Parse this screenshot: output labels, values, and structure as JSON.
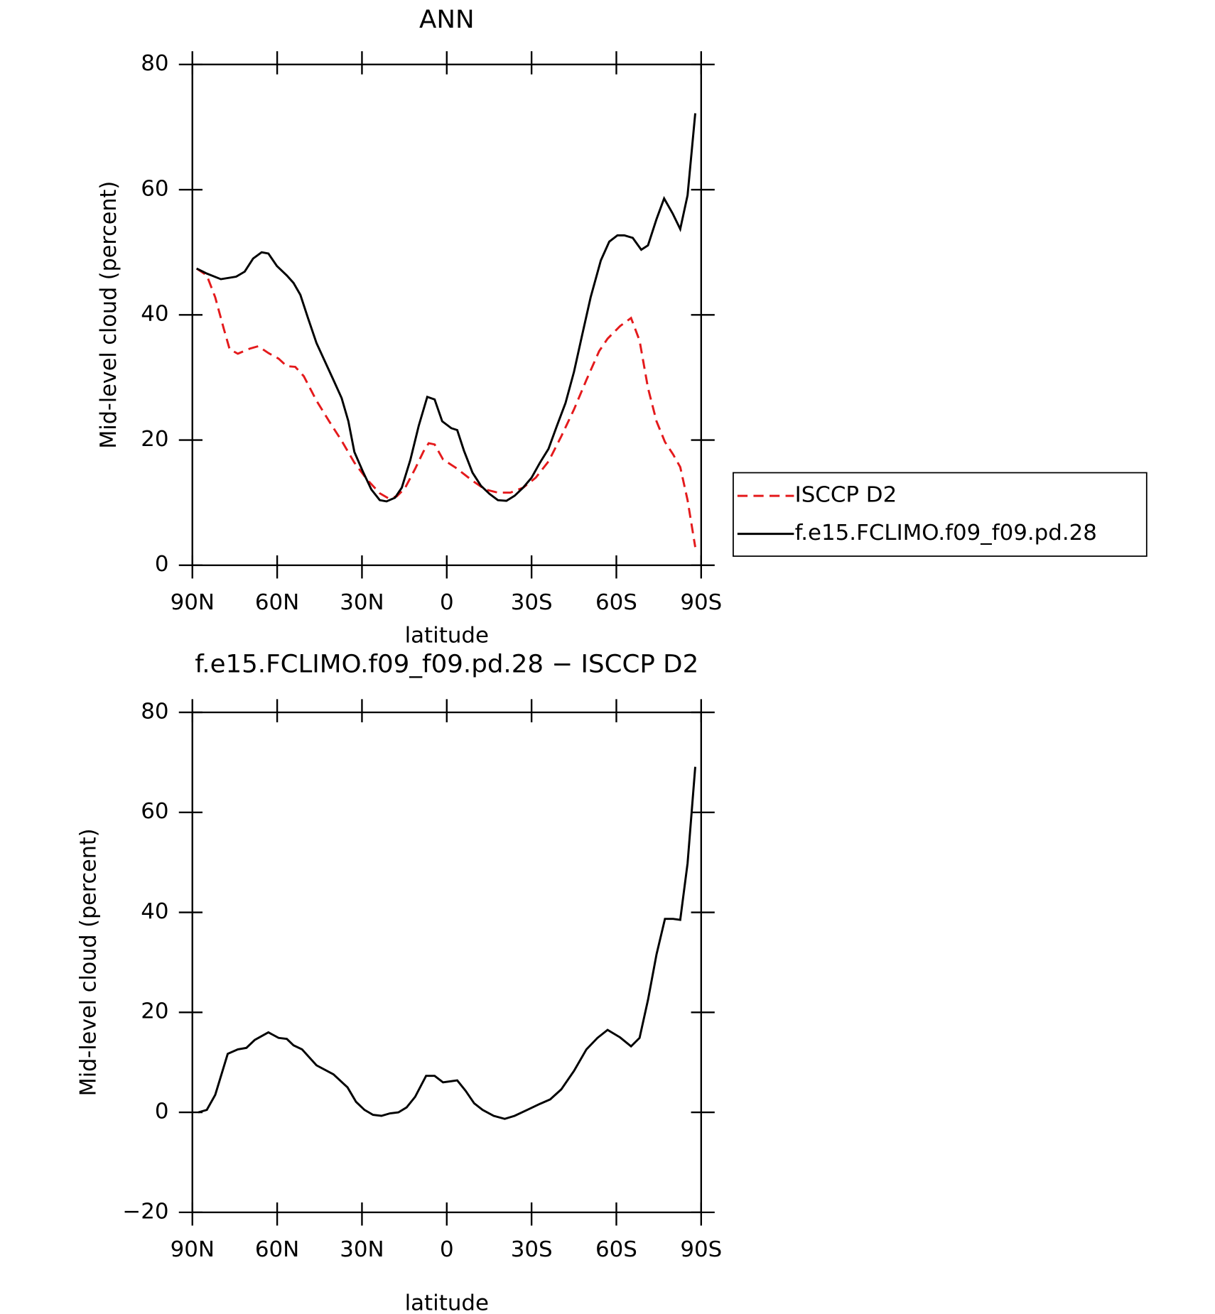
{
  "chart_data": [
    {
      "type": "line",
      "title": "ANN",
      "xlabel": "latitude",
      "ylabel": "Mid-level cloud (percent)",
      "xlim": [
        90,
        -90
      ],
      "xticks": [
        {
          "value": 90,
          "label": "90N"
        },
        {
          "value": 60,
          "label": "60N"
        },
        {
          "value": 30,
          "label": "30N"
        },
        0,
        {
          "value": -30,
          "label": "30S"
        },
        {
          "value": -60,
          "label": "60S"
        },
        {
          "value": -90,
          "label": "90S"
        }
      ],
      "ylim": [
        0,
        80
      ],
      "yticks": [
        0,
        20,
        40,
        60,
        80
      ],
      "legend": "outside-right",
      "series": [
        {
          "name": "ISCCP D2",
          "color": "#e41a1c",
          "dash": true,
          "x": [
            88.5,
            84.9,
            81.9,
            78.9,
            76.8,
            73.9,
            69.7,
            66.7,
            63.1,
            59.5,
            56.6,
            53.6,
            50.6,
            46.1,
            41.6,
            37.2,
            32.7,
            28.2,
            23.7,
            20.7,
            17.7,
            14.8,
            11.2,
            8.2,
            6.4,
            4.3,
            1.3,
            -3.1,
            -9.1,
            -13.6,
            -18.1,
            -22.5,
            -27.0,
            -31.5,
            -36.0,
            -40.5,
            -45.0,
            -49.4,
            -53.9,
            -56.9,
            -61.3,
            -65.2,
            -68.2,
            -71.2,
            -74.2,
            -77.2,
            -80.1,
            -82.6,
            -85.2,
            -87.9
          ],
          "values": [
            47.4,
            46.3,
            42.8,
            37.8,
            34.5,
            33.8,
            34.6,
            35.0,
            33.9,
            33.0,
            31.8,
            31.7,
            30.2,
            26.3,
            23.0,
            19.9,
            16.4,
            13.7,
            11.5,
            10.7,
            11.0,
            12.3,
            15.4,
            18.2,
            19.5,
            19.3,
            16.9,
            15.6,
            13.5,
            12.1,
            11.6,
            11.6,
            12.4,
            14.0,
            16.6,
            20.6,
            24.9,
            29.6,
            34.2,
            36.2,
            38.2,
            39.5,
            35.9,
            28.3,
            23.0,
            19.7,
            17.7,
            15.7,
            10.4,
            2.9
          ]
        },
        {
          "name": "f.e15.FCLIMO.f09_f09.pd.28",
          "color": "#000000",
          "dash": false,
          "x": [
            88.5,
            84.9,
            79.9,
            74.5,
            71.5,
            68.5,
            65.5,
            63.1,
            60.1,
            56.6,
            54.2,
            51.8,
            49.1,
            46.1,
            40.1,
            37.2,
            34.8,
            32.7,
            29.7,
            26.7,
            23.7,
            21.3,
            18.3,
            15.9,
            12.9,
            9.9,
            6.9,
            4.3,
            1.6,
            -1.6,
            -3.7,
            -6.1,
            -9.1,
            -12.1,
            -15.1,
            -18.1,
            -21.1,
            -24.0,
            -27.0,
            -30.0,
            -33.0,
            -36.0,
            -39.0,
            -42.0,
            -45.0,
            -47.9,
            -50.9,
            -54.5,
            -57.5,
            -60.4,
            -62.8,
            -65.8,
            -68.8,
            -71.2,
            -74.2,
            -76.9,
            -79.9,
            -82.6,
            -85.2,
            -87.9
          ],
          "values": [
            47.4,
            46.6,
            45.7,
            46.1,
            46.9,
            49.0,
            50.0,
            49.8,
            47.8,
            46.3,
            45.1,
            43.2,
            39.5,
            35.5,
            29.6,
            26.7,
            23.0,
            18.1,
            15.0,
            12.1,
            10.4,
            10.2,
            10.8,
            12.4,
            16.8,
            22.3,
            26.9,
            26.5,
            23.0,
            21.9,
            21.6,
            18.3,
            14.8,
            12.7,
            11.4,
            10.4,
            10.3,
            11.1,
            12.4,
            14.0,
            16.4,
            18.6,
            22.3,
            25.9,
            30.9,
            36.8,
            42.8,
            48.7,
            51.7,
            52.7,
            52.7,
            52.3,
            50.4,
            51.1,
            55.3,
            58.6,
            56.2,
            53.7,
            59.1,
            72.2
          ]
        }
      ]
    },
    {
      "type": "line",
      "title": "f.e15.FCLIMO.f09_f09.pd.28 − ISCCP D2",
      "xlabel": "latitude",
      "ylabel": "Mid-level cloud (percent)",
      "xlim": [
        90,
        -90
      ],
      "xticks": [
        {
          "value": 90,
          "label": "90N"
        },
        {
          "value": 60,
          "label": "60N"
        },
        {
          "value": 30,
          "label": "30N"
        },
        0,
        {
          "value": -30,
          "label": "30S"
        },
        {
          "value": -60,
          "label": "60S"
        },
        {
          "value": -90,
          "label": "90S"
        }
      ],
      "ylim": [
        -20,
        80
      ],
      "yticks": [
        {
          "value": -20,
          "label": "−20"
        },
        0,
        20,
        40,
        60,
        80
      ],
      "series": [
        {
          "color": "#000000",
          "dash": false,
          "x": [
            87.9,
            84.9,
            81.9,
            77.5,
            73.9,
            70.9,
            67.9,
            63.1,
            59.5,
            56.6,
            54.2,
            51.2,
            46.1,
            40.1,
            35.1,
            32.1,
            29.1,
            26.1,
            23.1,
            20.1,
            17.1,
            14.2,
            11.2,
            7.3,
            4.3,
            1.3,
            -3.7,
            -6.7,
            -9.7,
            -12.7,
            -16.6,
            -20.5,
            -24.0,
            -28.5,
            -33.0,
            -36.6,
            -40.5,
            -45.0,
            -49.4,
            -53.3,
            -56.9,
            -61.3,
            -65.2,
            -68.2,
            -71.2,
            -74.2,
            -77.2,
            -80.1,
            -82.6,
            -85.2,
            -87.9
          ],
          "values": [
            0,
            0.5,
            3.5,
            11.7,
            12.6,
            12.9,
            14.5,
            16.0,
            14.9,
            14.7,
            13.4,
            12.6,
            9.4,
            7.6,
            5.0,
            2.1,
            0.5,
            -0.5,
            -0.7,
            -0.2,
            0,
            1.0,
            3.1,
            7.3,
            7.3,
            6.0,
            6.4,
            4.3,
            1.8,
            0.5,
            -0.7,
            -1.3,
            -0.7,
            0.5,
            1.7,
            2.6,
            4.6,
            8.3,
            12.6,
            14.9,
            16.5,
            15.0,
            13.2,
            14.9,
            22.5,
            31.6,
            38.7,
            38.7,
            38.5,
            49.8,
            69.1
          ]
        }
      ]
    }
  ]
}
